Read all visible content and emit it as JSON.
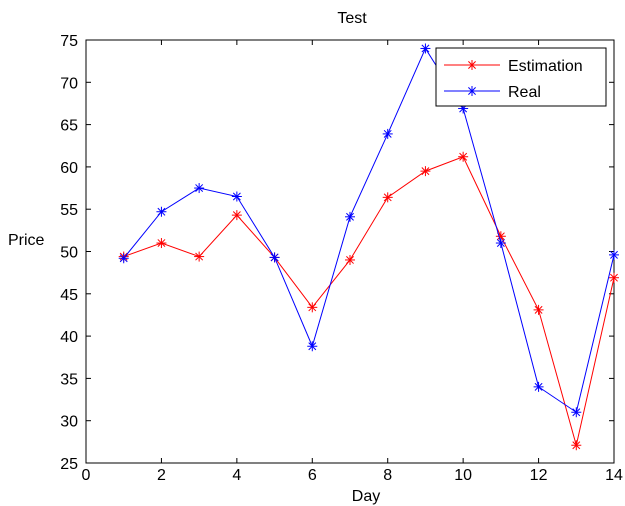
{
  "chart_data": {
    "type": "line",
    "title": "Test",
    "xlabel": "Day",
    "ylabel": "Price",
    "xlim": [
      0,
      14
    ],
    "ylim": [
      25,
      75
    ],
    "xticks": [
      "0",
      "2",
      "4",
      "6",
      "8",
      "10",
      "12",
      "14"
    ],
    "yticks": [
      "25",
      "30",
      "35",
      "40",
      "45",
      "50",
      "55",
      "60",
      "65",
      "70",
      "75"
    ],
    "grid": false,
    "legend_position": "top-right",
    "marker": "asterisk",
    "x": [
      1,
      2,
      3,
      4,
      5,
      6,
      7,
      8,
      9,
      10,
      11,
      12,
      13,
      14
    ],
    "series": [
      {
        "name": "Estimation",
        "color": "#ff0000",
        "values": [
          49.4,
          51.0,
          49.4,
          54.3,
          49.3,
          43.4,
          49.0,
          56.4,
          59.5,
          61.2,
          51.8,
          43.1,
          27.1,
          46.9
        ]
      },
      {
        "name": "Real",
        "color": "#0000ff",
        "values": [
          49.2,
          54.7,
          57.5,
          56.5,
          49.3,
          38.8,
          54.1,
          63.9,
          74.0,
          66.9,
          51.0,
          34.0,
          31.0,
          49.6
        ]
      }
    ]
  }
}
